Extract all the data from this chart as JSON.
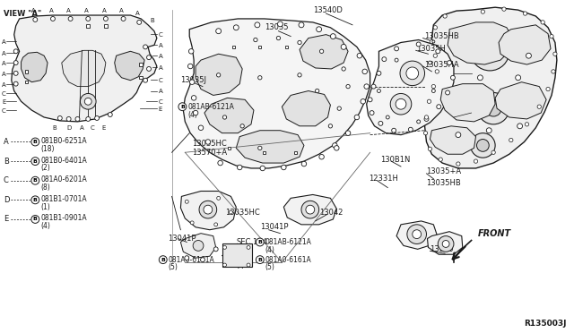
{
  "background_color": "#ffffff",
  "line_color": "#1a1a1a",
  "ref_code": "R135003J",
  "legend": [
    {
      "letter": "A",
      "part": "081B0-6251A",
      "qty": "(18)"
    },
    {
      "letter": "B",
      "part": "081B0-6401A",
      "qty": "(2)"
    },
    {
      "letter": "C",
      "part": "081A0-6201A",
      "qty": "(8)"
    },
    {
      "letter": "D",
      "part": "081B1-0701A",
      "qty": "(1)"
    },
    {
      "letter": "E",
      "part": "081B1-0901A",
      "qty": "(4)"
    }
  ]
}
